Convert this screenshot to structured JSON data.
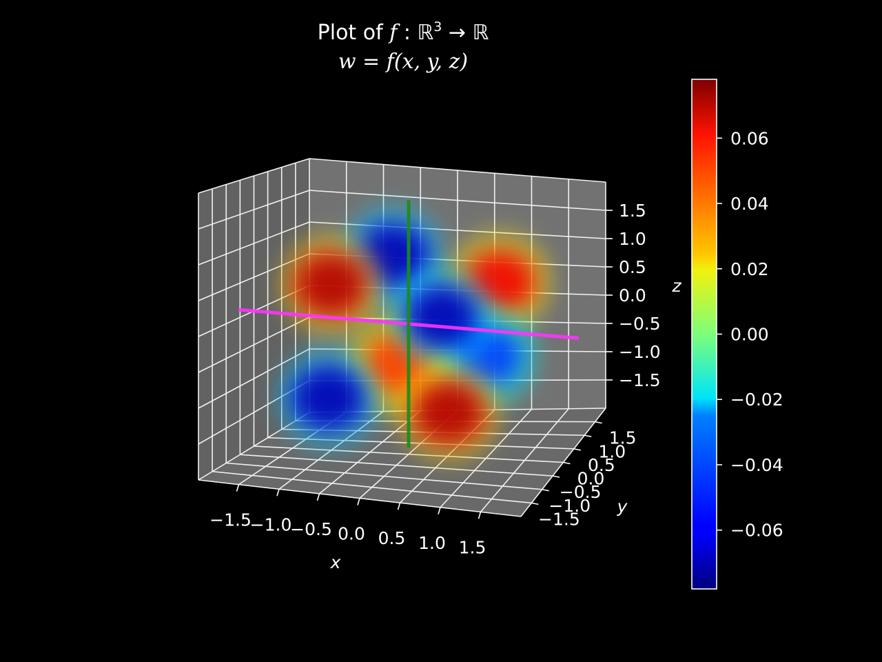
{
  "title": {
    "line1_prefix": "Plot of ",
    "line1_f": "f",
    "line1_colon": " : ",
    "line1_domain": "ℝ",
    "line1_exp": "3",
    "line1_arrow": " → ",
    "line1_codomain": "ℝ",
    "line2": "w = f(x, y, z)"
  },
  "colors": {
    "background": "#000000",
    "pane": "#787878",
    "grid": "#f2f2f2",
    "x_axis_line": "#ff33ff",
    "z_axis_line": "#1a8c1a",
    "colormap": "jet"
  },
  "chart_data": {
    "type": "scatter",
    "projection": "3d",
    "xlabel": "x",
    "ylabel": "y",
    "zlabel": "z",
    "xlim": [
      -2,
      2
    ],
    "ylim": [
      -2,
      2
    ],
    "zlim": [
      -2,
      2
    ],
    "xticks": [
      "−1.5",
      "−1.0",
      "−0.5",
      "0.0",
      "0.5",
      "1.0",
      "1.5"
    ],
    "yticks": [
      "−1.5",
      "−1.0",
      "−0.5",
      "0.0",
      "0.5",
      "1.0",
      "1.5"
    ],
    "zticks": [
      "−1.5",
      "−1.0",
      "−0.5",
      "0.0",
      "0.5",
      "1.0",
      "1.5"
    ],
    "tick_values": [
      -1.5,
      -1.0,
      -0.5,
      0.0,
      0.5,
      1.0,
      1.5
    ],
    "grid": true,
    "axis_lines": [
      {
        "axis": "x",
        "from": [
          -2.2,
          0,
          0
        ],
        "to": [
          2.2,
          0,
          0
        ],
        "color": "#ff33ff"
      },
      {
        "axis": "z",
        "from": [
          0,
          0,
          -1.9
        ],
        "to": [
          0,
          0,
          1.9
        ],
        "color": "#1a8c1a"
      }
    ],
    "lobes": [
      {
        "x": -1.0,
        "y": 0.0,
        "z": 0.5,
        "w": 0.07
      },
      {
        "x": 1.0,
        "y": 0.6,
        "z": 0.6,
        "w": 0.06
      },
      {
        "x": -0.5,
        "y": 0.9,
        "z": 0.8,
        "w": -0.07
      },
      {
        "x": 0.5,
        "y": -0.2,
        "z": 0.2,
        "w": -0.07
      },
      {
        "x": -0.9,
        "y": -0.4,
        "z": -1.1,
        "w": -0.07
      },
      {
        "x": 0.7,
        "y": -0.6,
        "z": -1.1,
        "w": 0.07
      },
      {
        "x": -0.1,
        "y": -0.1,
        "z": -0.6,
        "w": 0.05
      },
      {
        "x": 1.0,
        "y": 0.0,
        "z": -0.4,
        "w": -0.05
      }
    ],
    "colorbar": {
      "colormap": "jet",
      "vmin": -0.078,
      "vmax": 0.078,
      "ticks": [
        -0.06,
        -0.04,
        -0.02,
        0.0,
        0.02,
        0.04,
        0.06
      ],
      "tick_labels": [
        "−0.06",
        "−0.04",
        "−0.02",
        "0.00",
        "0.02",
        "0.04",
        "0.06"
      ]
    }
  }
}
